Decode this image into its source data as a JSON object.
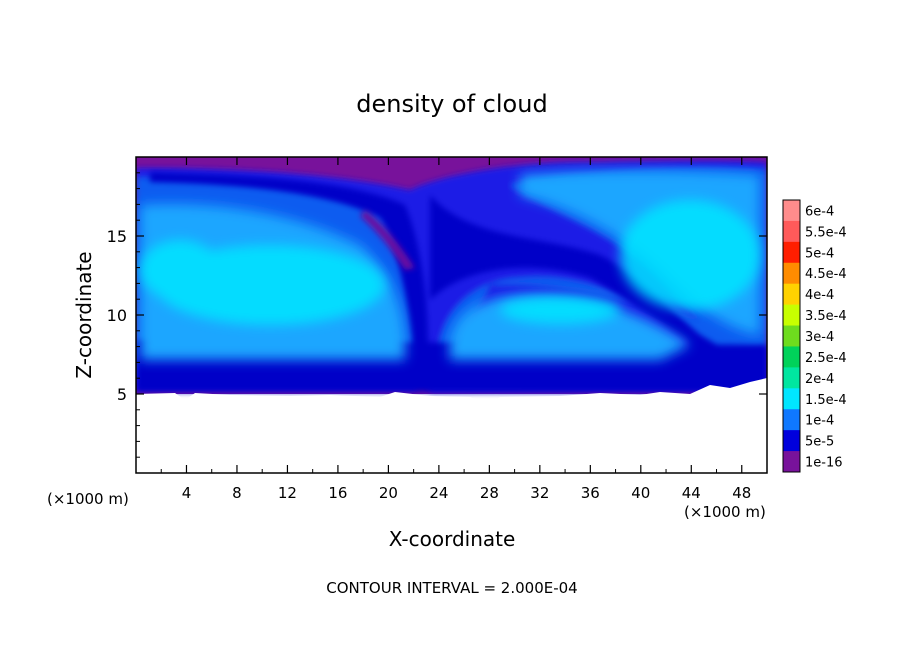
{
  "chart_data": {
    "type": "heatmap",
    "title": "density of cloud",
    "xlabel": "X-coordinate",
    "ylabel": "Z-coordinate",
    "x_unit": "(×1000 m)",
    "y_unit": "(×1000 m)",
    "footer": "CONTOUR INTERVAL = 2.000E-04",
    "xlim": [
      0,
      50
    ],
    "ylim": [
      0,
      20
    ],
    "x_ticks": [
      "4",
      "8",
      "12",
      "16",
      "20",
      "24",
      "28",
      "32",
      "36",
      "40",
      "44",
      "48"
    ],
    "y_ticks": [
      "5",
      "10",
      "15"
    ],
    "x_tick_values": [
      4,
      8,
      12,
      16,
      20,
      24,
      28,
      32,
      36,
      40,
      44,
      48
    ],
    "y_tick_values": [
      5,
      10,
      15
    ],
    "cloud_base_z": 5.2,
    "cloud_top_z": 19.5,
    "colorbar": {
      "labels": [
        "6e-4",
        "5.5e-4",
        "5e-4",
        "4.5e-4",
        "4e-4",
        "3.5e-4",
        "3e-4",
        "2.5e-4",
        "2e-4",
        "1.5e-4",
        "1e-4",
        "5e-5",
        "1e-16"
      ],
      "colors": [
        "#ff8c8c",
        "#ff5a5a",
        "#ff1e00",
        "#ff8c00",
        "#ffd200",
        "#c8ff00",
        "#6edc1e",
        "#00d25a",
        "#00e6a0",
        "#00e6ff",
        "#0f78ff",
        "#0000dc",
        "#78129b"
      ]
    },
    "regions": [
      {
        "name": "left cloud cell core",
        "x": [
          1,
          22
        ],
        "z": [
          8,
          17
        ],
        "value": "1.5e-4"
      },
      {
        "name": "right cloud cell core",
        "x": [
          22,
          47
        ],
        "z": [
          6.5,
          19
        ],
        "value": "1.5e-4"
      },
      {
        "name": "cloud edge",
        "value": "5e-5"
      },
      {
        "name": "background",
        "value": "1e-16"
      }
    ]
  }
}
